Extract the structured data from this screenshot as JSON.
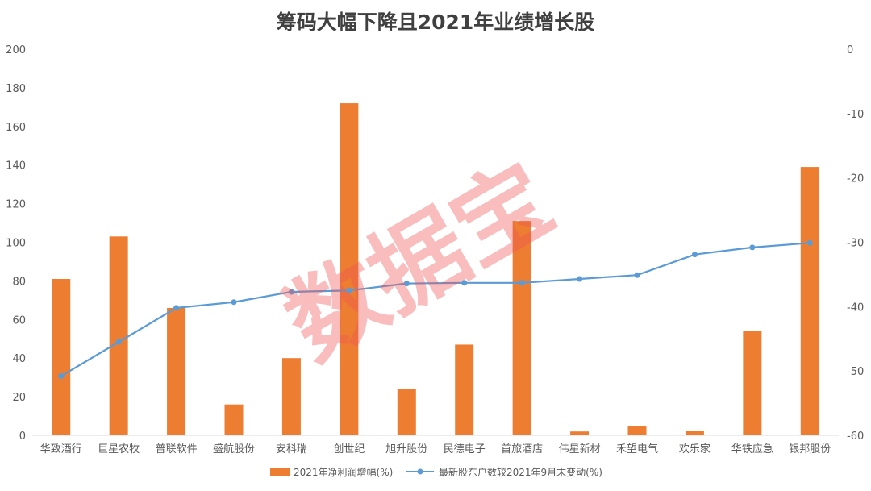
{
  "chart_data": {
    "type": "bar",
    "title": "筹码大幅下降且2021年业绩增长股",
    "categories": [
      "华致酒行",
      "巨星农牧",
      "普联软件",
      "盛航股份",
      "安科瑞",
      "创世纪",
      "旭升股份",
      "民德电子",
      "首旅酒店",
      "伟星新材",
      "禾望电气",
      "欢乐家",
      "华铁应急",
      "银邦股份"
    ],
    "series": [
      {
        "name": "2021年净利润增幅(%)",
        "type": "bar",
        "axis": "left",
        "color": "#ed7d31",
        "values": [
          81,
          103,
          66,
          16,
          40,
          172,
          24,
          47,
          111,
          2,
          5,
          2.5,
          54,
          139
        ]
      },
      {
        "name": "最新股东户数较2021年9月末变动(%)",
        "type": "line",
        "axis": "right",
        "color": "#5b9bd5",
        "values": [
          -50.8,
          -45.5,
          -40.2,
          -39.3,
          -37.7,
          -37.5,
          -36.4,
          -36.3,
          -36.3,
          -35.7,
          -35.1,
          -31.9,
          -30.8,
          -30.1
        ]
      }
    ],
    "ylim_left": [
      0,
      200
    ],
    "yticks_left": [
      "0",
      "20",
      "40",
      "60",
      "80",
      "100",
      "120",
      "140",
      "160",
      "180",
      "200"
    ],
    "ylim_right": [
      -60,
      0
    ],
    "yticks_right": [
      "0",
      "-10",
      "-20",
      "-30",
      "-40",
      "-50",
      "-60"
    ],
    "legend_position": "bottom",
    "watermark": "数据宝"
  }
}
